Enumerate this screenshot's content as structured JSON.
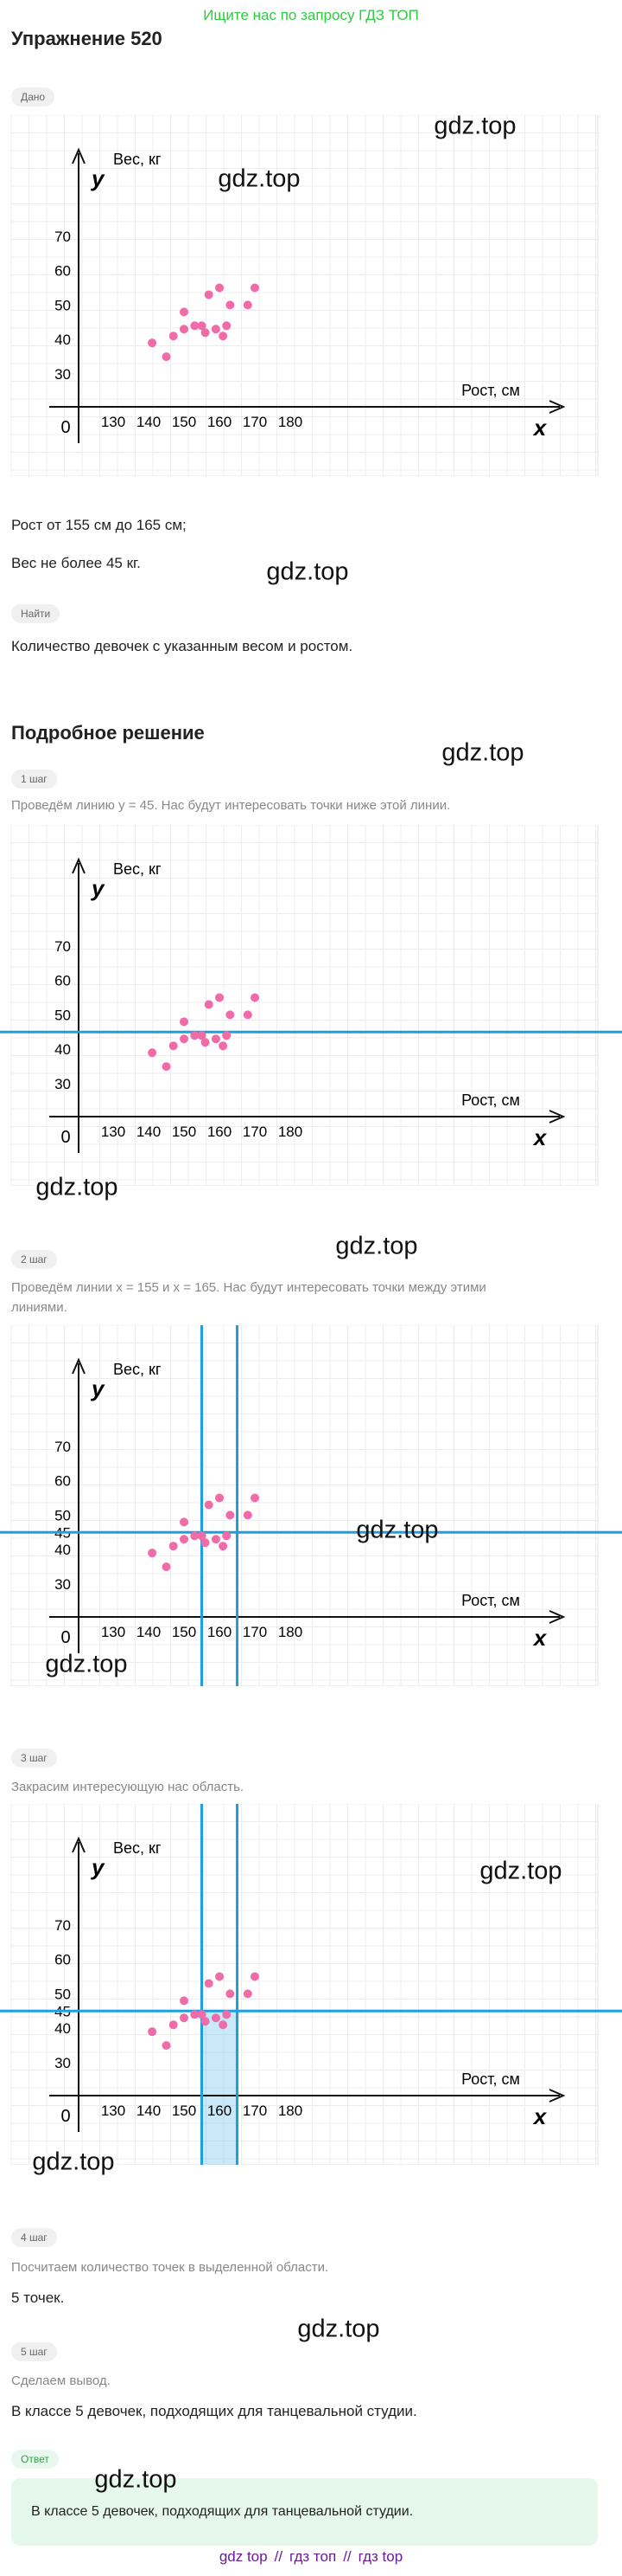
{
  "banner": "Ищите нас по запросу ГДЗ ТОП",
  "title": "Упражнение 520",
  "given": {
    "badge": "Дано",
    "lines": [
      "Рост от 155 см до 165 см;",
      "Вес не более 45 кг."
    ]
  },
  "find": {
    "badge": "Найти",
    "text": "Количество девочек с указанным весом и ростом."
  },
  "solution_title": "Подробное решение",
  "graph": {
    "y_label": "Вес, кг",
    "y_var": "y",
    "x_label": "Рост, см",
    "x_var": "x",
    "origin": "0",
    "xticks": [
      130,
      140,
      150,
      160,
      170,
      180
    ],
    "yticks": [
      30,
      40,
      50,
      60,
      70
    ],
    "point_color": "#f06ca8",
    "line_color": "#1ea0e0",
    "points": [
      {
        "x": 141,
        "y": 39
      },
      {
        "x": 145,
        "y": 35
      },
      {
        "x": 147,
        "y": 41
      },
      {
        "x": 150,
        "y": 48
      },
      {
        "x": 150,
        "y": 43
      },
      {
        "x": 153,
        "y": 44
      },
      {
        "x": 155,
        "y": 44
      },
      {
        "x": 156,
        "y": 42
      },
      {
        "x": 157,
        "y": 53
      },
      {
        "x": 159,
        "y": 43
      },
      {
        "x": 160,
        "y": 55
      },
      {
        "x": 161,
        "y": 41
      },
      {
        "x": 162,
        "y": 44
      },
      {
        "x": 163,
        "y": 50
      },
      {
        "x": 168,
        "y": 50
      },
      {
        "x": 170,
        "y": 55
      }
    ]
  },
  "steps": [
    {
      "badge": "1 шаг",
      "text": [
        "Проведём линию y = 45. Нас будут интересовать точки ниже этой линии."
      ],
      "hline": 45
    },
    {
      "badge": "2 шаг",
      "text": [
        "Проведём линии x = 155 и x = 165. Нас будут интересовать точки между этими",
        "линиями."
      ],
      "hline": 45,
      "vlines": [
        155,
        165
      ]
    },
    {
      "badge": "3 шаг",
      "text": [
        "Закрасим интересующую нас область."
      ],
      "hline": 45,
      "vlines": [
        155,
        165
      ],
      "shade": true
    },
    {
      "badge": "4 шаг",
      "text": [
        "Посчитаем количество точек в выделенной области."
      ],
      "result": "5 точек."
    },
    {
      "badge": "5 шаг",
      "text": [
        "Сделаем вывод."
      ],
      "result": "В классе 5 девочек, подходящих для танцевальной студии."
    }
  ],
  "answer": {
    "badge": "Ответ",
    "text": "В классе 5 девочек, подходящих для танцевальной студии."
  },
  "watermarks": [
    "gdz.top",
    "gdz.top",
    "gdz.top",
    "gdz.top",
    "gdz.top",
    "gdz.top",
    "gdz.top",
    "gdz.top",
    "gdz.top",
    "gdz.top",
    "gdz.top",
    "gdz.top"
  ],
  "footer": {
    "links": [
      "gdz top",
      "гдз топ",
      "гдз top"
    ],
    "separator": "//"
  }
}
